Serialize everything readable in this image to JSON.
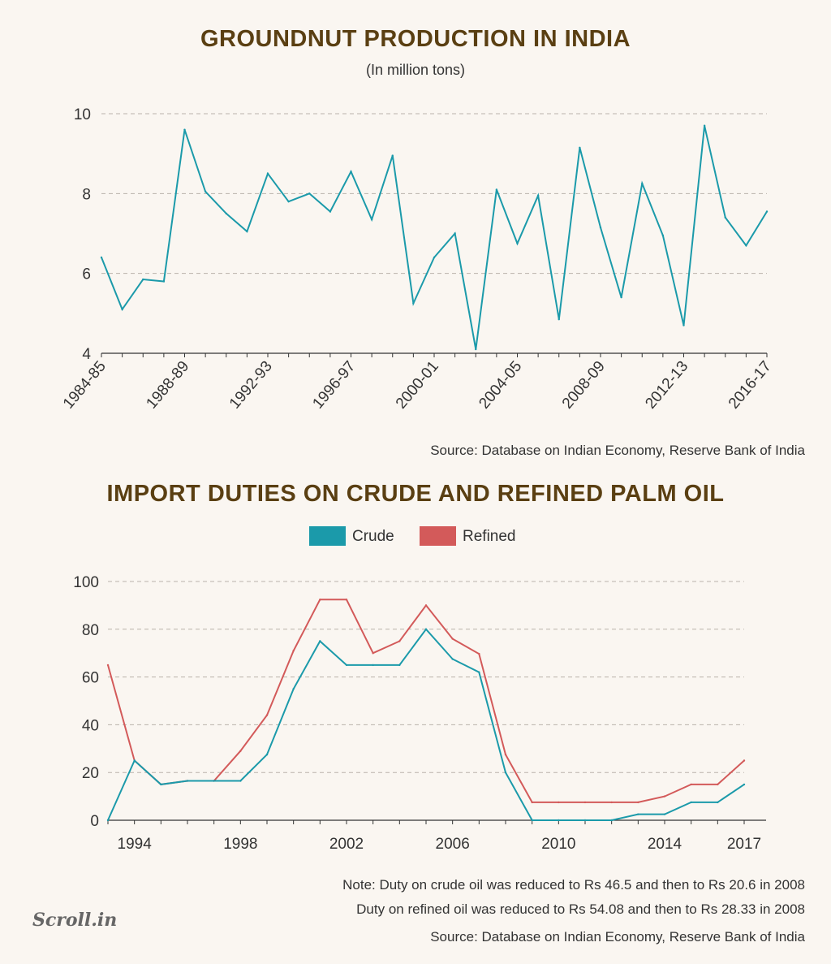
{
  "charts_text": {
    "groundnut": {
      "title": "GROUNDNUT PRODUCTION IN INDIA",
      "subtitle": "(In million tons)",
      "source": "Source: Database on Indian Economy, Reserve Bank of India"
    },
    "palm": {
      "title": "IMPORT DUTIES ON CRUDE AND REFINED PALM OIL",
      "note1": "Note: Duty on crude oil was reduced to Rs 46.5 and then to Rs 20.6 in 2008",
      "note2": "Duty on refined oil was reduced to Rs 54.08 and then to Rs 28.33 in 2008",
      "source": "Source: Database on Indian Economy, Reserve Bank of India"
    }
  },
  "logo": "Scroll.in",
  "colors": {
    "crude": "#1b9aaa",
    "refined": "#d35a5a",
    "line": "#1b9aaa",
    "title": "#5a3f12"
  },
  "chart_data": [
    {
      "type": "line",
      "title": "GROUNDNUT PRODUCTION IN INDIA",
      "subtitle": "(In million tons)",
      "ylim": [
        4,
        10
      ],
      "yticks": [
        4,
        6,
        8,
        10
      ],
      "x": [
        "1984-85",
        "1985-86",
        "1986-87",
        "1987-88",
        "1988-89",
        "1989-90",
        "1990-91",
        "1991-92",
        "1992-93",
        "1993-94",
        "1994-95",
        "1995-96",
        "1996-97",
        "1997-98",
        "1998-99",
        "1999-00",
        "2000-01",
        "2001-02",
        "2002-03",
        "2003-04",
        "2004-05",
        "2005-06",
        "2006-07",
        "2007-08",
        "2008-09",
        "2009-10",
        "2010-11",
        "2011-12",
        "2012-13",
        "2013-14",
        "2014-15",
        "2015-16",
        "2016-17"
      ],
      "xtick_labels": [
        "1984-85",
        "1988-89",
        "1992-93",
        "1996-97",
        "2000-01",
        "2004-05",
        "2008-09",
        "2012-13",
        "2016-17"
      ],
      "series": [
        {
          "values": [
            6.4,
            5.1,
            5.85,
            5.8,
            9.6,
            8.05,
            7.5,
            7.05,
            8.5,
            7.8,
            8.0,
            7.55,
            8.55,
            7.35,
            8.95,
            5.25,
            6.4,
            7.0,
            4.1,
            8.1,
            6.75,
            7.95,
            4.85,
            9.15,
            7.15,
            5.4,
            8.25,
            6.95,
            4.7,
            9.7,
            7.4,
            6.7,
            7.55
          ]
        }
      ]
    },
    {
      "type": "line",
      "title": "IMPORT DUTIES ON CRUDE AND REFINED PALM OIL",
      "ylim": [
        0,
        100
      ],
      "yticks": [
        0,
        20,
        40,
        60,
        80,
        100
      ],
      "x": [
        1993,
        1994,
        1995,
        1996,
        1997,
        1998,
        1999,
        2000,
        2001,
        2002,
        2003,
        2004,
        2005,
        2006,
        2007,
        2008,
        2009,
        2010,
        2011,
        2012,
        2013,
        2014,
        2015,
        2016,
        2017
      ],
      "xtick_labels": [
        "1994",
        "1998",
        "2002",
        "2006",
        "2010",
        "2014",
        "2017"
      ],
      "legend": "top",
      "series": [
        {
          "name": "Crude",
          "values": [
            0,
            25,
            15,
            16.5,
            16.5,
            16.5,
            27.5,
            55,
            75,
            65,
            65,
            65,
            80,
            67.5,
            62,
            20,
            0,
            0,
            0,
            0,
            2.5,
            2.5,
            7.5,
            7.5,
            15
          ]
        },
        {
          "name": "Refined",
          "values": [
            65,
            25,
            15,
            16.5,
            16.5,
            29,
            44,
            71,
            92.4,
            92.4,
            70,
            75,
            90,
            76,
            69.7,
            27.5,
            7.5,
            7.5,
            7.5,
            7.5,
            7.5,
            10,
            15,
            15,
            25
          ]
        }
      ]
    }
  ]
}
